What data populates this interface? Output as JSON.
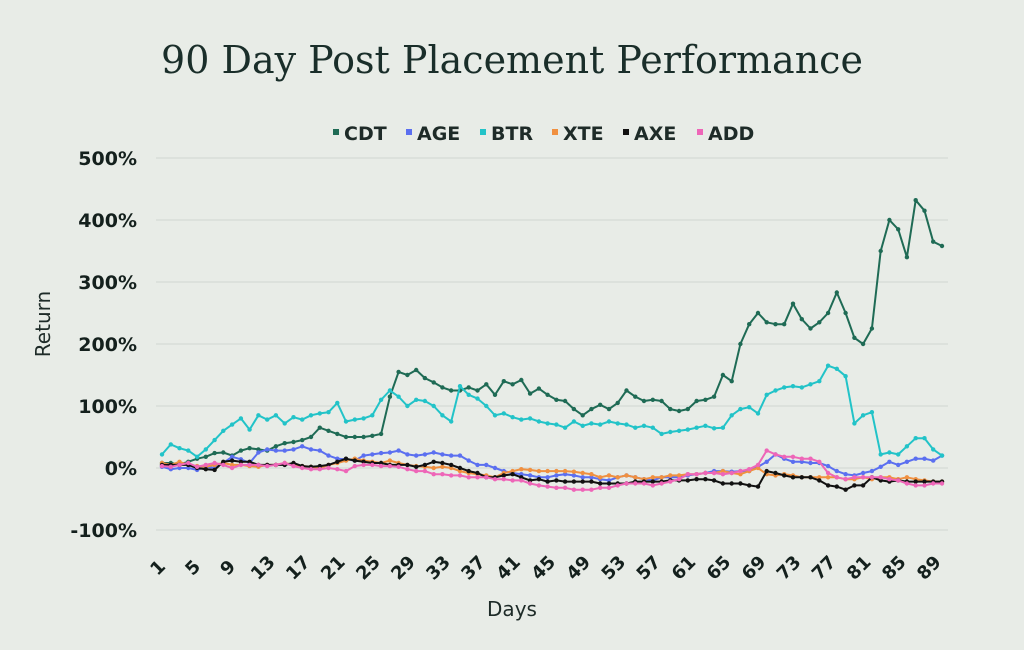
{
  "chart_data": {
    "type": "line",
    "title": "90 Day Post Placement Performance",
    "xlabel": "Days",
    "ylabel": "Return",
    "ylim": [
      -100,
      500
    ],
    "y_ticks": [
      -100,
      0,
      100,
      200,
      300,
      400,
      500
    ],
    "y_tick_labels": [
      "-100%",
      "0%",
      "100%",
      "200%",
      "300%",
      "400%",
      "500%"
    ],
    "x": [
      1,
      2,
      3,
      4,
      5,
      6,
      7,
      8,
      9,
      10,
      11,
      12,
      13,
      14,
      15,
      16,
      17,
      18,
      19,
      20,
      21,
      22,
      23,
      24,
      25,
      26,
      27,
      28,
      29,
      30,
      31,
      32,
      33,
      34,
      35,
      36,
      37,
      38,
      39,
      40,
      41,
      42,
      43,
      44,
      45,
      46,
      47,
      48,
      49,
      50,
      51,
      52,
      53,
      54,
      55,
      56,
      57,
      58,
      59,
      60,
      61,
      62,
      63,
      64,
      65,
      66,
      67,
      68,
      69,
      70,
      71,
      72,
      73,
      74,
      75,
      76,
      77,
      78,
      79,
      80,
      81,
      82,
      83,
      84,
      85,
      86,
      87,
      88,
      89,
      90
    ],
    "x_tick_labels": [
      "1",
      "5",
      "9",
      "13",
      "17",
      "21",
      "25",
      "29",
      "33",
      "37",
      "41",
      "45",
      "49",
      "53",
      "57",
      "61",
      "65",
      "69",
      "73",
      "77",
      "81",
      "85",
      "89"
    ],
    "legend": {
      "position": "top"
    },
    "grid": true,
    "series": [
      {
        "name": "CDT",
        "color": "#1f6b55",
        "values": [
          8,
          8,
          6,
          10,
          15,
          18,
          24,
          25,
          20,
          28,
          32,
          30,
          28,
          35,
          40,
          42,
          45,
          50,
          65,
          60,
          55,
          50,
          50,
          50,
          52,
          55,
          115,
          155,
          150,
          158,
          145,
          138,
          130,
          125,
          125,
          130,
          125,
          135,
          118,
          140,
          135,
          142,
          120,
          128,
          118,
          110,
          108,
          95,
          85,
          95,
          102,
          95,
          105,
          125,
          115,
          108,
          110,
          108,
          95,
          92,
          95,
          108,
          110,
          115,
          150,
          140,
          200,
          232,
          250,
          235,
          232,
          232,
          265,
          240,
          225,
          235,
          250,
          283,
          250,
          210,
          200,
          225,
          350,
          400,
          385,
          340,
          432,
          415,
          365,
          358
        ]
      },
      {
        "name": "AGE",
        "color": "#5b6ff0",
        "values": [
          2,
          -2,
          0,
          0,
          -3,
          2,
          0,
          8,
          18,
          14,
          8,
          25,
          30,
          28,
          28,
          30,
          35,
          30,
          28,
          20,
          15,
          14,
          12,
          20,
          22,
          24,
          25,
          28,
          22,
          20,
          22,
          25,
          22,
          20,
          20,
          12,
          5,
          5,
          0,
          -5,
          -8,
          -10,
          -12,
          -15,
          -15,
          -12,
          -10,
          -12,
          -15,
          -15,
          -18,
          -20,
          -15,
          -12,
          -15,
          -18,
          -20,
          -15,
          -15,
          -15,
          -12,
          -10,
          -8,
          -5,
          -5,
          -6,
          -5,
          -5,
          2,
          10,
          22,
          15,
          10,
          10,
          8,
          8,
          3,
          -5,
          -10,
          -12,
          -8,
          -5,
          2,
          10,
          5,
          10,
          15,
          15,
          12,
          20
        ]
      },
      {
        "name": "BTR",
        "color": "#22c3c8",
        "values": [
          22,
          38,
          32,
          28,
          18,
          30,
          45,
          60,
          70,
          80,
          62,
          85,
          78,
          85,
          72,
          82,
          78,
          85,
          88,
          90,
          105,
          75,
          78,
          80,
          85,
          110,
          125,
          115,
          100,
          110,
          108,
          100,
          85,
          75,
          132,
          118,
          112,
          100,
          85,
          88,
          82,
          78,
          80,
          75,
          72,
          70,
          65,
          75,
          68,
          72,
          70,
          75,
          72,
          70,
          65,
          68,
          65,
          55,
          58,
          60,
          62,
          65,
          68,
          64,
          65,
          85,
          95,
          98,
          88,
          118,
          125,
          130,
          132,
          130,
          135,
          140,
          165,
          160,
          148,
          72,
          85,
          90,
          22,
          25,
          22,
          35,
          48,
          48,
          30,
          20
        ]
      },
      {
        "name": "XTE",
        "color": "#f09040",
        "values": [
          8,
          5,
          10,
          5,
          3,
          2,
          5,
          8,
          5,
          5,
          3,
          2,
          5,
          5,
          8,
          5,
          3,
          2,
          0,
          5,
          8,
          12,
          15,
          12,
          10,
          8,
          12,
          8,
          5,
          3,
          2,
          0,
          2,
          0,
          -5,
          -8,
          -10,
          -12,
          -15,
          -8,
          -5,
          -2,
          -3,
          -5,
          -5,
          -5,
          -5,
          -6,
          -8,
          -10,
          -15,
          -12,
          -15,
          -12,
          -15,
          -18,
          -15,
          -15,
          -12,
          -12,
          -10,
          -10,
          -8,
          -8,
          -5,
          -8,
          -10,
          -5,
          0,
          -10,
          -12,
          -10,
          -12,
          -15,
          -15,
          -15,
          -15,
          -15,
          -18,
          -18,
          -15,
          -18,
          -15,
          -15,
          -18,
          -15,
          -18,
          -20,
          -22,
          -22
        ]
      },
      {
        "name": "AXE",
        "color": "#111111",
        "values": [
          5,
          5,
          5,
          5,
          0,
          -2,
          -3,
          10,
          12,
          10,
          10,
          5,
          5,
          5,
          5,
          8,
          3,
          2,
          3,
          5,
          10,
          15,
          12,
          10,
          8,
          8,
          5,
          5,
          5,
          2,
          5,
          10,
          8,
          5,
          0,
          -5,
          -8,
          -15,
          -15,
          -12,
          -10,
          -15,
          -20,
          -18,
          -22,
          -20,
          -22,
          -22,
          -22,
          -22,
          -25,
          -25,
          -25,
          -25,
          -22,
          -22,
          -22,
          -22,
          -20,
          -20,
          -20,
          -18,
          -18,
          -20,
          -25,
          -25,
          -25,
          -28,
          -30,
          -5,
          -8,
          -12,
          -15,
          -15,
          -15,
          -20,
          -28,
          -30,
          -35,
          -28,
          -28,
          -15,
          -20,
          -22,
          -20,
          -22,
          -22,
          -22,
          -22,
          -22
        ]
      },
      {
        "name": "ADD",
        "color": "#ee66b8",
        "values": [
          3,
          2,
          5,
          8,
          2,
          5,
          8,
          5,
          0,
          5,
          5,
          5,
          3,
          5,
          8,
          3,
          0,
          -2,
          -2,
          0,
          -2,
          -5,
          3,
          5,
          5,
          3,
          3,
          2,
          -2,
          -5,
          -5,
          -10,
          -10,
          -12,
          -12,
          -15,
          -15,
          -15,
          -18,
          -18,
          -20,
          -20,
          -25,
          -28,
          -30,
          -32,
          -32,
          -35,
          -35,
          -35,
          -32,
          -32,
          -28,
          -25,
          -25,
          -25,
          -28,
          -25,
          -22,
          -18,
          -10,
          -10,
          -8,
          -8,
          -10,
          -8,
          -5,
          -2,
          5,
          28,
          22,
          18,
          18,
          15,
          15,
          10,
          -8,
          -15,
          -18,
          -15,
          -15,
          -15,
          -15,
          -18,
          -20,
          -25,
          -28,
          -28,
          -25,
          -25
        ]
      }
    ]
  }
}
